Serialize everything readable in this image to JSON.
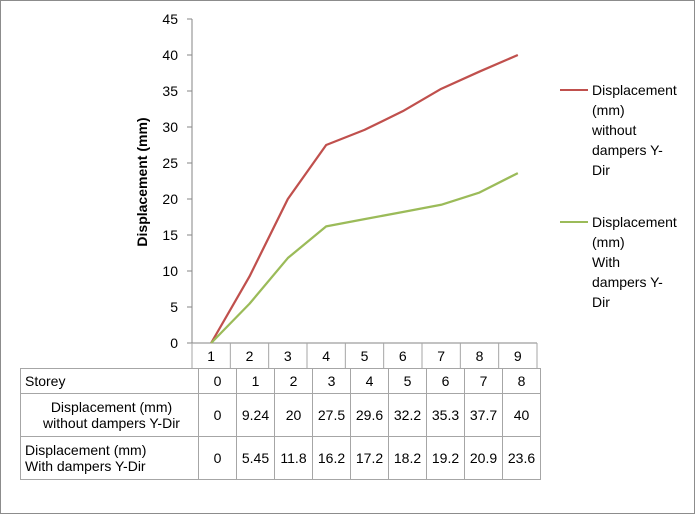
{
  "chart_data": {
    "type": "line",
    "categories": [
      "1",
      "2",
      "3",
      "4",
      "5",
      "6",
      "7",
      "8",
      "9"
    ],
    "series": [
      {
        "name": "Displacement (mm) without dampers Y-Dir",
        "values": [
          0,
          9.24,
          20,
          27.5,
          29.6,
          32.2,
          35.3,
          37.7,
          40
        ],
        "color": "#c0504d"
      },
      {
        "name": "Displacement (mm) With dampers Y-Dir",
        "values": [
          0,
          5.45,
          11.8,
          16.2,
          17.2,
          18.2,
          19.2,
          20.9,
          23.6
        ],
        "color": "#9bbb59"
      }
    ],
    "title": "",
    "xlabel": "",
    "ylabel": "Displacement (mm)",
    "ylim": [
      0,
      45
    ],
    "yticks": [
      "0",
      "5",
      "10",
      "15",
      "20",
      "25",
      "30",
      "35",
      "40",
      "45"
    ],
    "grid": false,
    "legend_position": "right",
    "legend_labels": [
      "Displacement\n(mm)\nwithout\ndampers Y-\nDir",
      "Displacement\n(mm)\nWith\ndampers Y-\nDir"
    ],
    "table": {
      "rows": [
        {
          "header": "Storey",
          "values": [
            "0",
            "1",
            "2",
            "3",
            "4",
            "5",
            "6",
            "7",
            "8"
          ]
        },
        {
          "header": "Displacement (mm)\nwithout dampers Y-Dir",
          "values": [
            "0",
            "9.24",
            "20",
            "27.5",
            "29.6",
            "32.2",
            "35.3",
            "37.7",
            "40"
          ]
        },
        {
          "header": "Displacement (mm)\nWith dampers Y-Dir",
          "values": [
            "0",
            "5.45",
            "11.8",
            "16.2",
            "17.2",
            "18.2",
            "19.2",
            "20.9",
            "23.6"
          ]
        }
      ]
    }
  }
}
